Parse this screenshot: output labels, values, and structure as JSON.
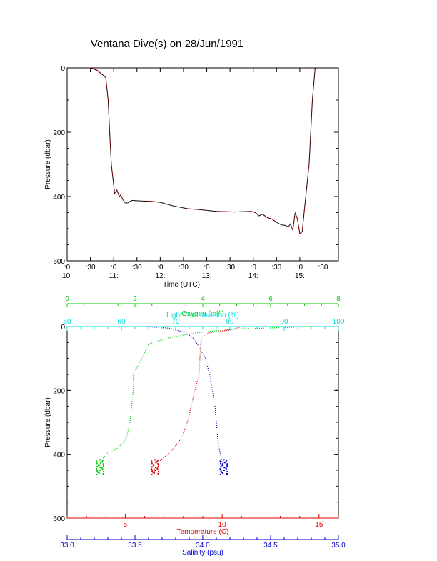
{
  "title": "Ventana Dive(s) on 28/Jun/1991",
  "colors": {
    "axis": "#000000",
    "oxygen": "#00cc00",
    "transmission": "#00dddd",
    "temperature": "#dd0000",
    "salinity": "#0000cc",
    "trace": "#000000",
    "trace_dots": "#dd0000"
  },
  "chart_data": [
    {
      "type": "line",
      "ylabel": "Pressure (dbar)",
      "xlabel": "Time (UTC)",
      "ylim": [
        600,
        0
      ],
      "yticks": [
        "0",
        "200",
        "400",
        "600"
      ],
      "ytick_values": [
        0,
        200,
        400,
        600
      ],
      "xlim": [
        10.0,
        15.83
      ],
      "xticks": [
        {
          "x": 10.0,
          "label": ":0",
          "sub": "10:"
        },
        {
          "x": 10.5,
          "label": ":30",
          "sub": ""
        },
        {
          "x": 11.0,
          "label": ":0",
          "sub": "11:"
        },
        {
          "x": 11.5,
          "label": ":30",
          "sub": ""
        },
        {
          "x": 12.0,
          "label": ":0",
          "sub": "12:"
        },
        {
          "x": 12.5,
          "label": ":30",
          "sub": ""
        },
        {
          "x": 13.0,
          "label": ":0",
          "sub": "13:"
        },
        {
          "x": 13.5,
          "label": ":30",
          "sub": ""
        },
        {
          "x": 14.0,
          "label": ":0",
          "sub": "14:"
        },
        {
          "x": 14.5,
          "label": ":30",
          "sub": ""
        },
        {
          "x": 15.0,
          "label": ":0",
          "sub": "15:"
        },
        {
          "x": 15.5,
          "label": ":30",
          "sub": ""
        }
      ],
      "series": [
        {
          "x": [
            10.5,
            10.65,
            10.83,
            10.88,
            10.92,
            10.95,
            11.02,
            11.07,
            11.12,
            11.15,
            11.2,
            11.25,
            11.3,
            11.35,
            11.4,
            11.5,
            11.6,
            11.8,
            12.0,
            12.3,
            12.6,
            12.8,
            13.0,
            13.2,
            13.4,
            13.6,
            13.8,
            13.95,
            14.05,
            14.12,
            14.2,
            14.3,
            14.4,
            14.5,
            14.6,
            14.7,
            14.75,
            14.8,
            14.85,
            14.9,
            14.95,
            15.0,
            15.05,
            15.1,
            15.2,
            15.27,
            15.33
          ],
          "y": [
            0,
            8,
            30,
            100,
            220,
            300,
            390,
            380,
            400,
            395,
            410,
            420,
            420,
            415,
            412,
            413,
            414,
            415,
            418,
            430,
            438,
            440,
            443,
            446,
            447,
            448,
            447,
            446,
            450,
            460,
            455,
            465,
            470,
            480,
            488,
            490,
            495,
            485,
            505,
            450,
            470,
            515,
            510,
            440,
            300,
            100,
            0
          ]
        }
      ]
    },
    {
      "type": "scatter",
      "ylabel": "Pressure (dbar)",
      "ylim": [
        600,
        0
      ],
      "yticks": [
        "0",
        "200",
        "400",
        "600"
      ],
      "ytick_values": [
        0,
        200,
        400,
        600
      ],
      "axes": {
        "oxygen": {
          "label": "Oxygen (ml/l)",
          "range": [
            0,
            8
          ],
          "ticks": [
            "0",
            "2",
            "4",
            "6",
            "8"
          ],
          "tick_values": [
            0,
            2,
            4,
            6,
            8
          ]
        },
        "transmission": {
          "label": "Light Transmission (%)",
          "range": [
            50,
            100
          ],
          "ticks": [
            "50",
            "60",
            "70",
            "80",
            "90",
            "100"
          ],
          "tick_values": [
            50,
            60,
            70,
            80,
            90,
            100
          ]
        },
        "temperature": {
          "label": "Temperature (C)",
          "range": [
            2,
            16
          ],
          "ticks": [
            "5",
            "10",
            "15"
          ],
          "tick_values": [
            5,
            10,
            15
          ]
        },
        "salinity": {
          "label": "Salinity (psu)",
          "range": [
            33.0,
            35.0
          ],
          "ticks": [
            "33.0",
            "33.5",
            "34.0",
            "34.5",
            "35.0"
          ],
          "tick_values": [
            33.0,
            33.5,
            34.0,
            34.5,
            35.0
          ]
        }
      },
      "series": [
        {
          "name": "Oxygen (ml/l)",
          "x": [
            7.2,
            6.5,
            5.8,
            5.0,
            4.5,
            3.8,
            3.0,
            2.4,
            2.2,
            1.95,
            1.95,
            1.9,
            1.85,
            1.75,
            1.5,
            1.2,
            1.0,
            0.95,
            0.95
          ],
          "y": [
            0,
            3,
            5,
            8,
            12,
            20,
            35,
            55,
            100,
            150,
            200,
            250,
            300,
            350,
            380,
            395,
            420,
            440,
            460
          ]
        },
        {
          "name": "Temperature (C)",
          "x": [
            11.0,
            10.5,
            9.8,
            9.3,
            9.0,
            8.9,
            8.85,
            8.8,
            8.6,
            8.4,
            8.2,
            7.9,
            7.5,
            7.2,
            6.8,
            6.5,
            6.5
          ],
          "y": [
            0,
            10,
            15,
            20,
            30,
            50,
            100,
            150,
            200,
            250,
            300,
            350,
            380,
            400,
            420,
            440,
            460
          ]
        },
        {
          "name": "Salinity (psu)",
          "x": [
            33.58,
            33.75,
            33.88,
            33.94,
            33.98,
            34.02,
            34.05,
            34.07,
            34.09,
            34.1,
            34.11,
            34.12,
            34.13,
            34.14,
            34.15,
            34.15
          ],
          "y": [
            0,
            5,
            20,
            40,
            70,
            100,
            150,
            200,
            250,
            300,
            350,
            380,
            400,
            420,
            440,
            460
          ]
        }
      ]
    }
  ]
}
